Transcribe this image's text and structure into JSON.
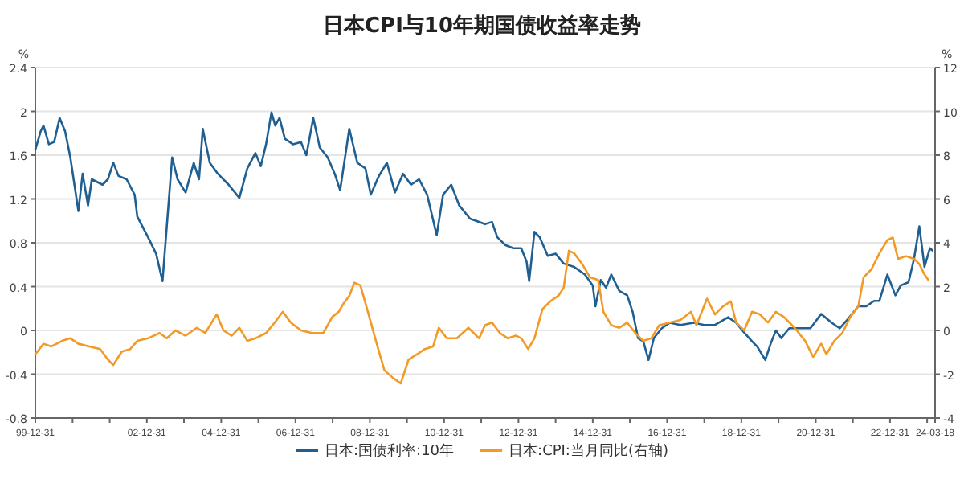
{
  "chart_data": {
    "type": "line",
    "title": "日本CPI与10年期国债收益率走势",
    "ylabel": "%",
    "y2label": "%",
    "xlim": [
      "1999-12-31",
      "2024-03-18"
    ],
    "xticks": [
      {
        "value": "1999-12-31",
        "label": "99-12-31"
      },
      {
        "value": "2000-12-31",
        "label": null
      },
      {
        "value": "2001-12-31",
        "label": null
      },
      {
        "value": "2002-12-31",
        "label": "02-12-31"
      },
      {
        "value": "2003-12-31",
        "label": null
      },
      {
        "value": "2004-12-31",
        "label": "04-12-31"
      },
      {
        "value": "2005-12-31",
        "label": null
      },
      {
        "value": "2006-12-31",
        "label": "06-12-31"
      },
      {
        "value": "2007-12-31",
        "label": null
      },
      {
        "value": "2008-12-31",
        "label": "08-12-31"
      },
      {
        "value": "2009-12-31",
        "label": null
      },
      {
        "value": "2010-12-31",
        "label": "10-12-31"
      },
      {
        "value": "2011-12-31",
        "label": null
      },
      {
        "value": "2012-12-31",
        "label": "12-12-31"
      },
      {
        "value": "2013-12-31",
        "label": null
      },
      {
        "value": "2014-12-31",
        "label": "14-12-31"
      },
      {
        "value": "2015-12-31",
        "label": null
      },
      {
        "value": "2016-12-31",
        "label": "16-12-31"
      },
      {
        "value": "2017-12-31",
        "label": null
      },
      {
        "value": "2018-12-31",
        "label": "18-12-31"
      },
      {
        "value": "2019-12-31",
        "label": null
      },
      {
        "value": "2020-12-31",
        "label": "20-12-31"
      },
      {
        "value": "2021-12-31",
        "label": null
      },
      {
        "value": "2022-12-31",
        "label": "22-12-31"
      },
      {
        "value": "2023-12-31",
        "label": null
      },
      {
        "value": "2024-03-18",
        "label": "24-03-18"
      }
    ],
    "ylim": [
      -0.8,
      2.4
    ],
    "yticks": [
      -0.8,
      -0.4,
      0,
      0.4,
      0.8,
      1.2,
      1.6,
      2,
      2.4
    ],
    "y2lim": [
      -4,
      12
    ],
    "y2ticks": [
      -4,
      -2,
      0,
      2,
      4,
      6,
      8,
      10,
      12
    ],
    "grid": "y",
    "legend": "bottom",
    "series": [
      {
        "name": "日本:国债利率:10年",
        "color": "#1f5f91",
        "x": [
          "1999-12-31",
          "2000-02-22",
          "2000-03-20",
          "2000-05-12",
          "2000-07-03",
          "2000-08-26",
          "2000-10-18",
          "2000-12-09",
          "2001-02-26",
          "2001-04-09",
          "2001-06-01",
          "2001-07-08",
          "2001-10-22",
          "2001-12-13",
          "2002-02-04",
          "2002-03-28",
          "2002-06-15",
          "2002-09-02",
          "2002-09-28",
          "2003-01-12",
          "2003-04-01",
          "2003-06-03",
          "2003-07-15",
          "2003-09-06",
          "2003-10-29",
          "2004-01-16",
          "2004-04-05",
          "2004-05-27",
          "2004-07-03",
          "2004-09-10",
          "2004-11-28",
          "2005-03-14",
          "2005-06-27",
          "2005-09-14",
          "2005-12-02",
          "2006-01-24",
          "2006-03-17",
          "2006-05-09",
          "2006-06-15",
          "2006-07-27",
          "2006-09-18",
          "2006-12-06",
          "2007-02-23",
          "2007-04-17",
          "2007-06-24",
          "2007-08-27",
          "2007-11-13",
          "2008-01-21",
          "2008-03-14",
          "2008-06-12",
          "2008-08-30",
          "2008-11-17",
          "2009-01-09",
          "2009-03-30",
          "2009-06-17",
          "2009-09-04",
          "2009-11-22",
          "2010-02-09",
          "2010-04-29",
          "2010-07-17",
          "2010-10-19",
          "2010-12-21",
          "2011-03-11",
          "2011-05-29",
          "2011-09-12",
          "2012-02-06",
          "2012-04-15",
          "2012-06-06",
          "2012-08-23",
          "2012-11-09",
          "2013-01-27",
          "2013-03-20",
          "2013-04-15",
          "2013-06-06",
          "2013-07-28",
          "2013-10-15",
          "2014-01-01",
          "2014-03-20",
          "2014-07-01",
          "2014-10-15",
          "2014-12-31",
          "2015-01-26",
          "2015-03-20",
          "2015-05-11",
          "2015-07-01",
          "2015-09-18",
          "2015-12-05",
          "2016-01-27",
          "2016-03-20",
          "2016-05-11",
          "2016-07-01",
          "2016-08-23",
          "2016-11-09",
          "2017-01-27",
          "2017-05-11",
          "2017-09-18",
          "2017-12-31",
          "2018-04-15",
          "2018-08-23",
          "2018-11-09",
          "2019-01-27",
          "2019-04-15",
          "2019-06-06",
          "2019-08-23",
          "2019-10-15",
          "2019-12-05",
          "2020-01-27",
          "2020-04-15",
          "2020-07-28",
          "2020-11-09",
          "2021-02-22",
          "2021-06-06",
          "2021-08-23",
          "2021-11-09",
          "2022-02-22",
          "2022-05-11",
          "2022-07-28",
          "2022-09-18",
          "2022-12-05",
          "2023-02-22",
          "2023-04-15",
          "2023-07-01",
          "2023-08-23",
          "2023-10-15",
          "2023-12-05",
          "2024-01-27",
          "2024-02-20"
        ],
        "values": [
          1.65,
          1.82,
          1.87,
          1.7,
          1.72,
          1.94,
          1.82,
          1.58,
          1.09,
          1.43,
          1.14,
          1.38,
          1.33,
          1.38,
          1.53,
          1.41,
          1.38,
          1.24,
          1.04,
          0.85,
          0.7,
          0.45,
          0.95,
          1.58,
          1.38,
          1.26,
          1.53,
          1.38,
          1.84,
          1.53,
          1.43,
          1.33,
          1.21,
          1.48,
          1.62,
          1.5,
          1.7,
          1.99,
          1.87,
          1.94,
          1.75,
          1.7,
          1.72,
          1.6,
          1.94,
          1.67,
          1.58,
          1.43,
          1.28,
          1.84,
          1.53,
          1.48,
          1.24,
          1.41,
          1.53,
          1.26,
          1.43,
          1.33,
          1.38,
          1.24,
          0.87,
          1.24,
          1.33,
          1.14,
          1.02,
          0.97,
          0.99,
          0.85,
          0.78,
          0.75,
          0.75,
          0.63,
          0.45,
          0.9,
          0.85,
          0.68,
          0.7,
          0.61,
          0.58,
          0.51,
          0.41,
          0.22,
          0.46,
          0.39,
          0.51,
          0.36,
          0.32,
          0.17,
          -0.07,
          -0.1,
          -0.27,
          -0.07,
          0.02,
          0.07,
          0.05,
          0.07,
          0.05,
          0.05,
          0.12,
          0.07,
          -0.02,
          -0.1,
          -0.15,
          -0.27,
          -0.12,
          0.0,
          -0.07,
          0.02,
          0.02,
          0.02,
          0.15,
          0.07,
          0.02,
          0.1,
          0.22,
          0.22,
          0.27,
          0.27,
          0.51,
          0.32,
          0.41,
          0.44,
          0.65,
          0.95,
          0.58,
          0.75,
          0.73
        ]
      },
      {
        "name": "日本:CPI:当月同比(右轴)",
        "color": "#f39a26",
        "axis": "y2",
        "x": [
          "1999-12-31",
          "2000-03-20",
          "2000-06-06",
          "2000-09-18",
          "2000-12-09",
          "2001-02-26",
          "2001-06-13",
          "2001-09-28",
          "2001-12-13",
          "2002-02-04",
          "2002-04-28",
          "2002-07-21",
          "2002-09-28",
          "2003-01-12",
          "2003-05-05",
          "2003-07-15",
          "2003-10-08",
          "2004-01-16",
          "2004-05-05",
          "2004-07-27",
          "2004-11-16",
          "2005-01-22",
          "2005-04-13",
          "2005-06-27",
          "2005-09-14",
          "2005-12-02",
          "2006-03-17",
          "2006-06-11",
          "2006-08-28",
          "2006-11-15",
          "2007-02-23",
          "2007-06-13",
          "2007-09-30",
          "2007-12-27",
          "2008-02-29",
          "2008-04-14",
          "2008-06-12",
          "2008-08-01",
          "2008-09-29",
          "2008-12-12",
          "2009-03-01",
          "2009-05-23",
          "2009-08-18",
          "2009-10-31",
          "2010-01-16",
          "2010-04-10",
          "2010-06-24",
          "2010-09-14",
          "2010-11-09",
          "2011-01-27",
          "2011-05-06",
          "2011-08-26",
          "2011-12-11",
          "2012-02-06",
          "2012-04-15",
          "2012-07-01",
          "2012-09-18",
          "2012-12-05",
          "2013-01-27",
          "2013-04-05",
          "2013-06-06",
          "2013-08-23",
          "2013-11-09",
          "2014-01-27",
          "2014-03-20",
          "2014-05-11",
          "2014-07-01",
          "2014-09-18",
          "2014-12-05",
          "2015-02-22",
          "2015-04-15",
          "2015-07-01",
          "2015-09-18",
          "2015-12-05",
          "2016-02-22",
          "2016-05-11",
          "2016-07-28",
          "2016-10-15",
          "2017-01-27",
          "2017-05-11",
          "2017-08-23",
          "2017-10-15",
          "2018-01-27",
          "2018-04-15",
          "2018-07-01",
          "2018-09-18",
          "2018-11-09",
          "2019-01-27",
          "2019-04-15",
          "2019-07-01",
          "2019-09-18",
          "2019-12-05",
          "2020-02-22",
          "2020-06-06",
          "2020-09-18",
          "2020-12-05",
          "2021-02-22",
          "2021-04-15",
          "2021-07-01",
          "2021-09-18",
          "2021-12-05",
          "2022-02-22",
          "2022-04-15",
          "2022-07-01",
          "2022-09-18",
          "2022-12-05",
          "2023-01-27",
          "2023-03-20",
          "2023-06-06",
          "2023-08-23",
          "2023-10-15",
          "2023-12-05",
          "2024-01-12"
        ],
        "values": [
          -1.09,
          -0.61,
          -0.73,
          -0.48,
          -0.36,
          -0.61,
          -0.73,
          -0.85,
          -1.33,
          -1.58,
          -0.97,
          -0.85,
          -0.48,
          -0.36,
          -0.12,
          -0.36,
          0.0,
          -0.24,
          0.12,
          -0.12,
          0.73,
          0.0,
          -0.24,
          0.12,
          -0.48,
          -0.36,
          -0.12,
          0.36,
          0.85,
          0.36,
          0.0,
          -0.12,
          -0.12,
          0.61,
          0.85,
          1.21,
          1.58,
          2.18,
          2.06,
          0.85,
          -0.48,
          -1.82,
          -2.18,
          -2.42,
          -1.33,
          -1.09,
          -0.85,
          -0.73,
          0.12,
          -0.36,
          -0.36,
          0.12,
          -0.36,
          0.24,
          0.36,
          -0.12,
          -0.36,
          -0.24,
          -0.36,
          -0.85,
          -0.36,
          0.97,
          1.33,
          1.58,
          1.94,
          3.64,
          3.52,
          3.03,
          2.42,
          2.3,
          0.85,
          0.24,
          0.12,
          0.36,
          -0.12,
          -0.48,
          -0.36,
          0.24,
          0.36,
          0.48,
          0.85,
          0.24,
          1.45,
          0.73,
          1.09,
          1.33,
          0.36,
          0.0,
          0.85,
          0.73,
          0.36,
          0.85,
          0.61,
          0.12,
          -0.48,
          -1.21,
          -0.61,
          -1.09,
          -0.48,
          -0.12,
          0.61,
          1.09,
          2.42,
          2.79,
          3.52,
          4.12,
          4.24,
          3.27,
          3.39,
          3.27,
          3.03,
          2.55,
          2.3
        ]
      }
    ]
  }
}
